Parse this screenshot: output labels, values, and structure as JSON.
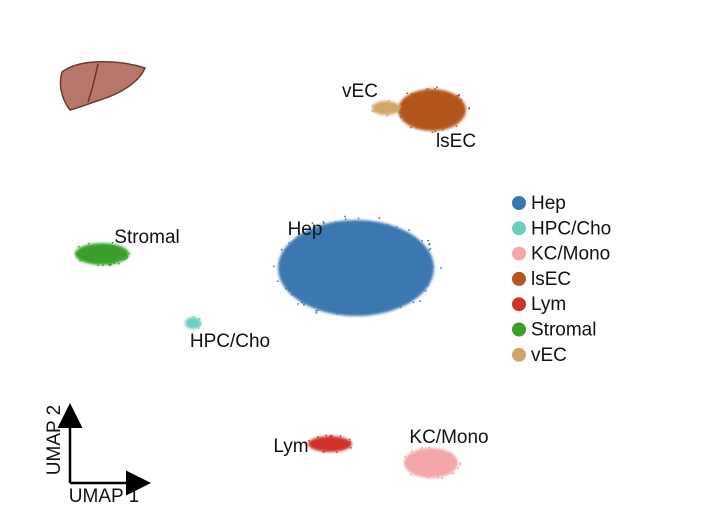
{
  "chart_data": {
    "type": "scatter",
    "xlabel": "UMAP 1",
    "ylabel": "UMAP 2",
    "series": [
      {
        "name": "Hep",
        "color": "#3b78b1"
      },
      {
        "name": "HPC/Cho",
        "color": "#6ccfbd"
      },
      {
        "name": "KC/Mono",
        "color": "#f4a7a9"
      },
      {
        "name": "lsEC",
        "color": "#b4561d"
      },
      {
        "name": "Lym",
        "color": "#d0332a"
      },
      {
        "name": "Stromal",
        "color": "#3aa02b"
      },
      {
        "name": "vEC",
        "color": "#d2a56a"
      }
    ]
  }
}
